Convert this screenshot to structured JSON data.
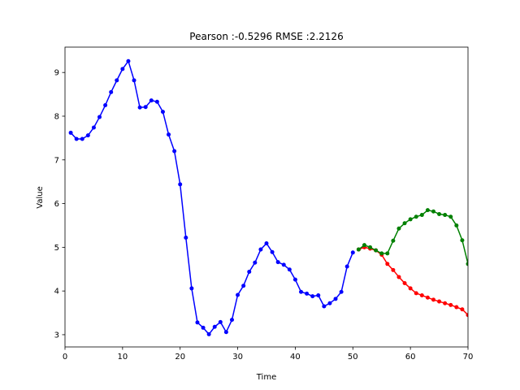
{
  "chart_data": {
    "type": "line",
    "title": "Pearson :-0.5296  RMSE :2.2126",
    "xlabel": "Time",
    "ylabel": "Value",
    "xlim": [
      0,
      70
    ],
    "ylim": [
      2.72,
      9.58
    ],
    "xticks": [
      0,
      10,
      20,
      30,
      40,
      50,
      60,
      70
    ],
    "yticks": [
      3,
      4,
      5,
      6,
      7,
      8,
      9
    ],
    "grid": false,
    "legend": "none",
    "series": [
      {
        "color": "#0000ff",
        "x": [
          1,
          2,
          3,
          4,
          5,
          6,
          7,
          8,
          9,
          10,
          11,
          12,
          13,
          14,
          15,
          16,
          17,
          18,
          19,
          20,
          21,
          22,
          23,
          24,
          25,
          26,
          27,
          28,
          29,
          30,
          31,
          32,
          33,
          34,
          35,
          36,
          37,
          38,
          39,
          40,
          41,
          42,
          43,
          44,
          45,
          46,
          47,
          48,
          49,
          50
        ],
        "y": [
          7.62,
          7.48,
          7.48,
          7.56,
          7.74,
          7.98,
          8.25,
          8.55,
          8.82,
          9.08,
          9.26,
          8.82,
          8.2,
          8.21,
          8.36,
          8.33,
          8.1,
          7.58,
          7.2,
          6.44,
          5.22,
          4.06,
          3.28,
          3.16,
          3.01,
          3.18,
          3.29,
          3.06,
          3.34,
          3.91,
          4.12,
          4.44,
          4.65,
          4.95,
          5.09,
          4.89,
          4.66,
          4.6,
          4.49,
          4.26,
          3.98,
          3.94,
          3.88,
          3.9,
          3.65,
          3.72,
          3.82,
          3.98,
          4.56,
          4.88
        ]
      },
      {
        "color": "#ff0000",
        "x": [
          51,
          52,
          53,
          54,
          55,
          56,
          57,
          58,
          59,
          60,
          61,
          62,
          63,
          64,
          65,
          66,
          67,
          68,
          69,
          70
        ],
        "y": [
          4.95,
          5.0,
          4.97,
          4.93,
          4.83,
          4.62,
          4.48,
          4.32,
          4.18,
          4.06,
          3.95,
          3.9,
          3.85,
          3.8,
          3.76,
          3.72,
          3.68,
          3.63,
          3.58,
          3.45
        ]
      },
      {
        "color": "#008000",
        "x": [
          51,
          52,
          53,
          54,
          55,
          56,
          57,
          58,
          59,
          60,
          61,
          62,
          63,
          64,
          65,
          66,
          67,
          68,
          69,
          70
        ],
        "y": [
          4.95,
          5.05,
          5.0,
          4.93,
          4.86,
          4.86,
          5.15,
          5.43,
          5.55,
          5.64,
          5.7,
          5.74,
          5.85,
          5.82,
          5.76,
          5.74,
          5.7,
          5.5,
          5.16,
          4.62
        ]
      }
    ]
  }
}
